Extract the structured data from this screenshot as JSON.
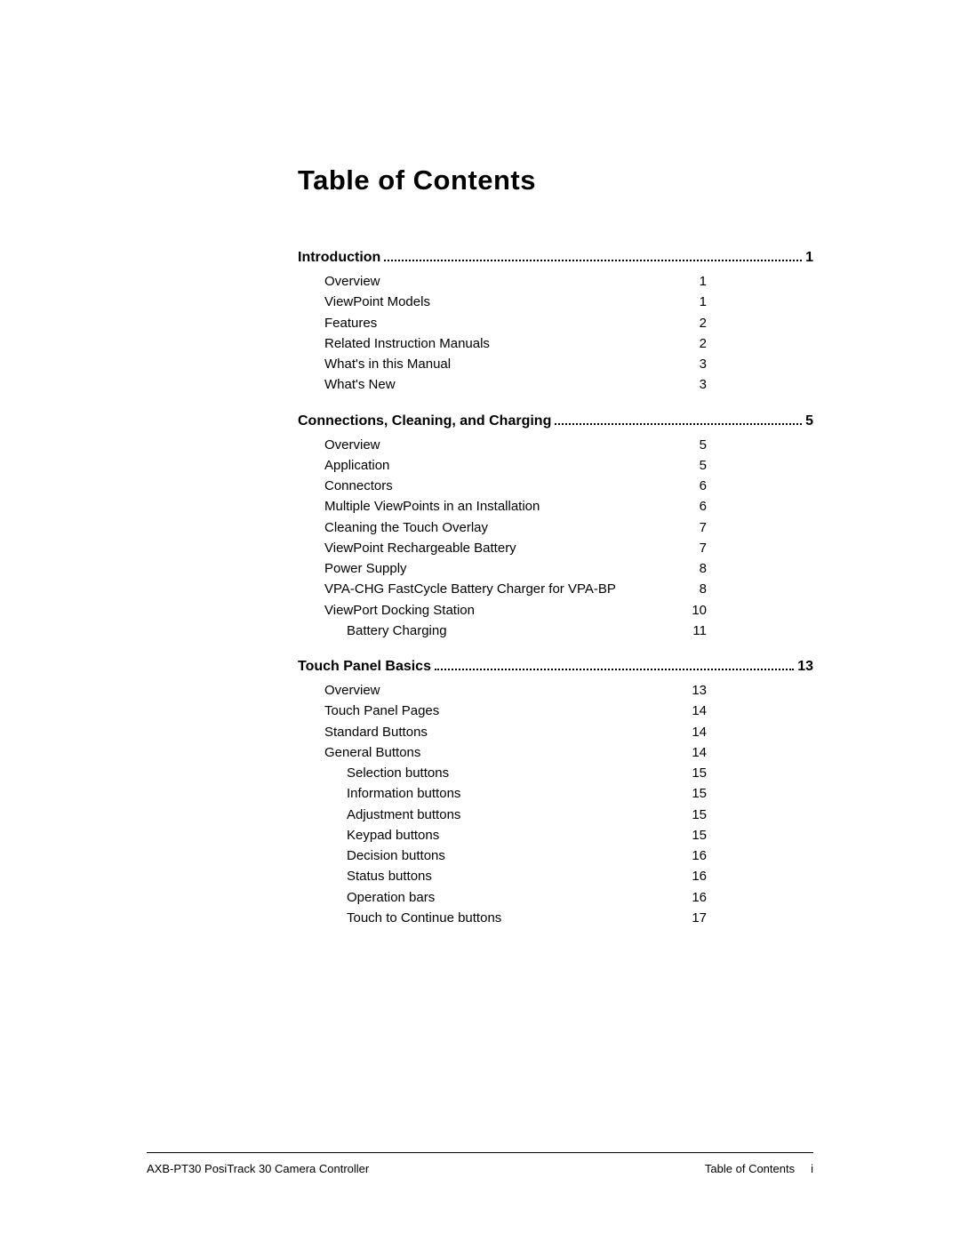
{
  "title": "Table of Contents",
  "sections": [
    {
      "title": "Introduction",
      "page": "1",
      "entries": [
        {
          "label": "Overview",
          "page": "1",
          "indent": 0
        },
        {
          "label": "ViewPoint Models",
          "page": "1",
          "indent": 0
        },
        {
          "label": "Features",
          "page": "2",
          "indent": 0
        },
        {
          "label": "Related Instruction Manuals",
          "page": "2",
          "indent": 0
        },
        {
          "label": "What's in this Manual",
          "page": "3",
          "indent": 0
        },
        {
          "label": "What's New",
          "page": "3",
          "indent": 0
        }
      ]
    },
    {
      "title": "Connections, Cleaning, and  Charging",
      "page": "5",
      "entries": [
        {
          "label": "Overview",
          "page": "5",
          "indent": 0
        },
        {
          "label": "Application",
          "page": "5",
          "indent": 0
        },
        {
          "label": "Connectors",
          "page": "6",
          "indent": 0
        },
        {
          "label": "Multiple ViewPoints in an Installation",
          "page": "6",
          "indent": 0
        },
        {
          "label": "Cleaning the Touch Overlay",
          "page": "7",
          "indent": 0
        },
        {
          "label": "ViewPoint Rechargeable Battery",
          "page": "7",
          "indent": 0
        },
        {
          "label": "Power Supply",
          "page": "8",
          "indent": 0
        },
        {
          "label": "VPA-CHG FastCycle Battery Charger for VPA-BP",
          "page": "8",
          "indent": 0
        },
        {
          "label": "ViewPort Docking Station",
          "page": "10",
          "indent": 0
        },
        {
          "label": "Battery Charging",
          "page": "11",
          "indent": 1
        }
      ]
    },
    {
      "title": "Touch Panel Basics",
      "page": "13",
      "entries": [
        {
          "label": "Overview",
          "page": "13",
          "indent": 0
        },
        {
          "label": "Touch Panel Pages",
          "page": "14",
          "indent": 0
        },
        {
          "label": "Standard Buttons",
          "page": "14",
          "indent": 0
        },
        {
          "label": "General Buttons",
          "page": "14",
          "indent": 0
        },
        {
          "label": "Selection buttons",
          "page": "15",
          "indent": 1
        },
        {
          "label": "Information buttons",
          "page": "15",
          "indent": 1
        },
        {
          "label": "Adjustment buttons",
          "page": "15",
          "indent": 1
        },
        {
          "label": "Keypad buttons",
          "page": "15",
          "indent": 1
        },
        {
          "label": "Decision buttons",
          "page": "16",
          "indent": 1
        },
        {
          "label": "Status buttons",
          "page": "16",
          "indent": 1
        },
        {
          "label": "Operation bars",
          "page": "16",
          "indent": 1
        },
        {
          "label": "Touch to Continue buttons",
          "page": "17",
          "indent": 1
        }
      ]
    }
  ],
  "footer": {
    "left": "AXB-PT30 PosiTrack 30 Camera Controller",
    "rightLabel": "Table of Contents",
    "rightPage": "i"
  },
  "style": {
    "pageWidth": 1080,
    "pageHeight": 1397,
    "background": "#ffffff",
    "textColor": "#000000",
    "titleFontSize": 31,
    "sectionFontSize": 16,
    "entryFontSize": 15,
    "footerFontSize": 13
  }
}
